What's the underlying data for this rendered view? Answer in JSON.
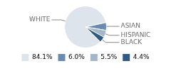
{
  "chart_data": {
    "type": "pie",
    "categories": [
      "WHITE",
      "ASIAN",
      "HISPANIC",
      "BLACK"
    ],
    "values": [
      84.1,
      6.0,
      5.5,
      4.4
    ],
    "value_labels": [
      "84.1%",
      "6.0%",
      "5.5%",
      "4.4%"
    ],
    "colors": [
      "#dde4ec",
      "#6a8bb0",
      "#a4b6ca",
      "#2e5a83"
    ],
    "legend": "bottom"
  }
}
